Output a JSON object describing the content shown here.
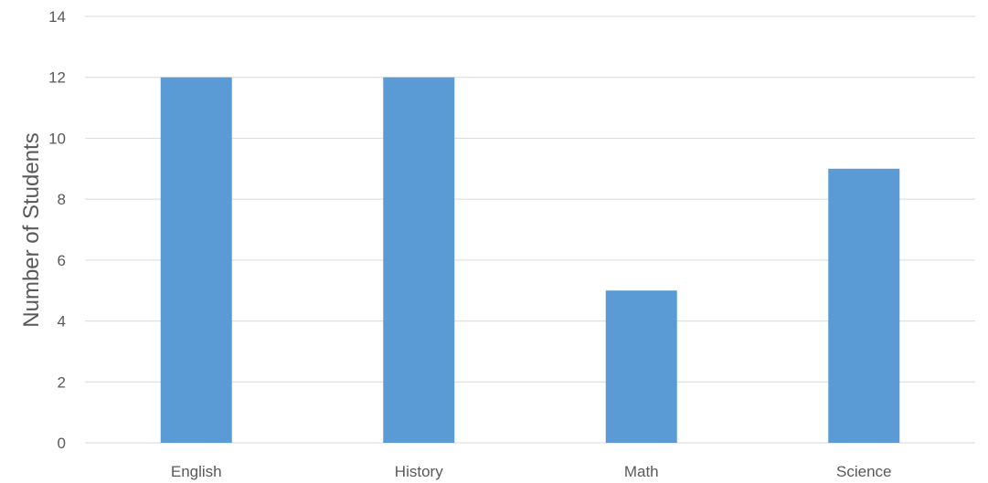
{
  "chart_data": {
    "type": "bar",
    "title": "",
    "xlabel": "",
    "ylabel": "Number of Students",
    "categories": [
      "English",
      "History",
      "Math",
      "Science"
    ],
    "values": [
      12,
      12,
      5,
      9
    ],
    "ylim": [
      0,
      14
    ],
    "yticks": [
      0,
      2,
      4,
      6,
      8,
      10,
      12,
      14
    ],
    "grid": true,
    "legend": "none",
    "bar_color": "#5b9bd5",
    "grid_color": "#d9d9d9",
    "text_color": "#595959"
  }
}
